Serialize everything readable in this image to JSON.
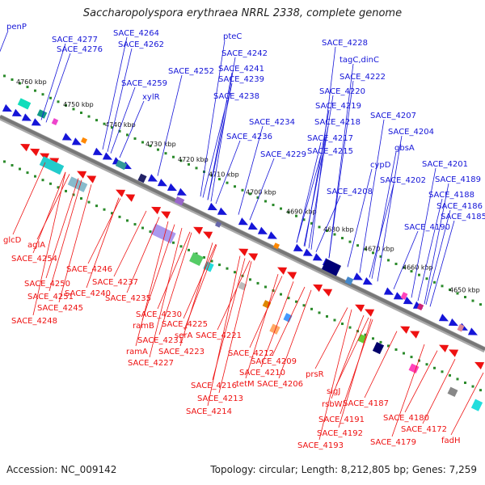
{
  "title": "Saccharopolyspora erythraea NRRL 2338, complete genome",
  "footer": {
    "accession": "Accession: NC_009142",
    "info": "Topology: circular; Length: 8,212,805 bp; Genes: 7,259"
  },
  "colors": {
    "forward": "#1515d8",
    "reverse": "#ee1111",
    "backbone": "#777777",
    "dots": "#2a8a2a"
  },
  "ticks": [
    "4760 kbp",
    "4750 kbp",
    "4740 kbp",
    "4730 kbp",
    "4720 kbp",
    "4710 kbp",
    "4700 kbp",
    "4690 kbp",
    "4680 kbp",
    "4670 kbp",
    "4660 kbp",
    "4650 kbp"
  ],
  "top_labels": [
    "penP",
    "SACE_4277",
    "SACE_4276",
    "SACE_4264",
    "SACE_4262",
    "pteC",
    "SACE_4242",
    "SACE_4252",
    "SACE_4241",
    "SACE_4239",
    "SACE_4259",
    "xylR",
    "SACE_4238",
    "SACE_4228",
    "tagC,dinC",
    "SACE_4222",
    "SACE_4220",
    "SACE_4219",
    "SACE_4218",
    "SACE_4234",
    "SACE_4236",
    "SACE_4217",
    "SACE_4229",
    "SACE_4215",
    "SACE_4207",
    "SACE_4204",
    "gbsA",
    "cypD",
    "SACE_4201",
    "SACE_4202",
    "SACE_4208",
    "SACE_4189",
    "SACE_4188",
    "SACE_4186",
    "SACE_4185",
    "SACE_4190"
  ],
  "bottom_labels": [
    "glcD",
    "aglA",
    "SACE_4254",
    "SACE_4246",
    "SACE_4250",
    "SACE_4251",
    "SACE_4240",
    "SACE_4237",
    "SACE_4245",
    "SACE_4248",
    "SACE_4235",
    "SACE_4230",
    "ramB",
    "SACE_4225",
    "SACE_4231",
    "serA",
    "SACE_4221",
    "ramA",
    "SACE_4223",
    "SACE_4227",
    "SACE_4212",
    "SACE_4209",
    "SACE_4210",
    "SACE_4216",
    "tetM",
    "SACE_4206",
    "SACE_4213",
    "SACE_4214",
    "prsR",
    "sigJ",
    "rsbW",
    "SACE_4187",
    "SACE_4191",
    "SACE_4192",
    "SACE_4193",
    "SACE_4180",
    "SACE_4172",
    "SACE_4179",
    "fadH"
  ]
}
